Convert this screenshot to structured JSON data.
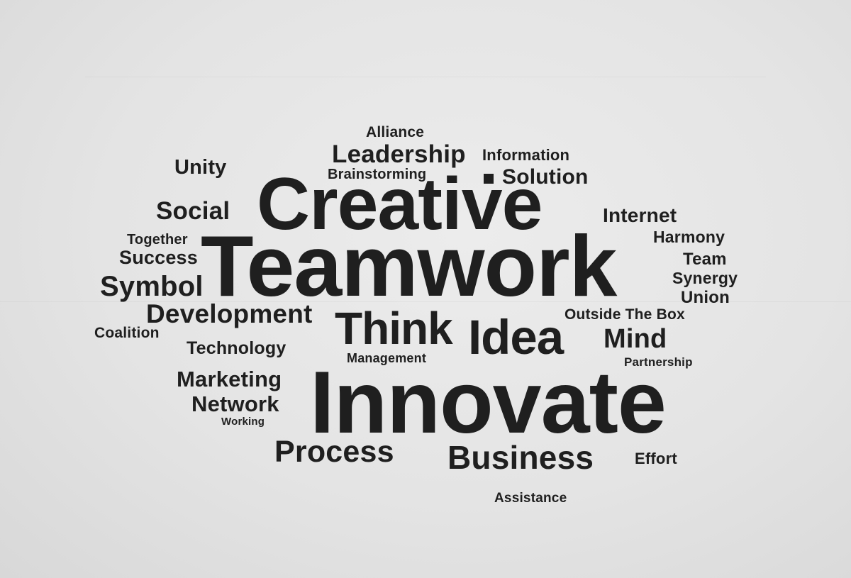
{
  "wall_color": "#e6e6e6",
  "text_color": "#1f1f1f",
  "words": {
    "alliance": "Alliance",
    "leadership": "Leadership",
    "information": "Information",
    "unity": "Unity",
    "brainstorming": "Brainstorming",
    "solution": "Solution",
    "creative": "Creative",
    "social": "Social",
    "internet": "Internet",
    "together": "Together",
    "harmony": "Harmony",
    "success": "Success",
    "teamwork": "Teamwork",
    "team": "Team",
    "synergy": "Synergy",
    "symbol": "Symbol",
    "union": "Union",
    "development": "Development",
    "outside_the_box": "Outside The Box",
    "think": "Think",
    "idea": "Idea",
    "coalition": "Coalition",
    "mind": "Mind",
    "technology": "Technology",
    "management": "Management",
    "partnership": "Partnership",
    "marketing": "Marketing",
    "innovate": "Innovate",
    "network": "Network",
    "working": "Working",
    "process": "Process",
    "business": "Business",
    "effort": "Effort",
    "assistance": "Assistance"
  }
}
